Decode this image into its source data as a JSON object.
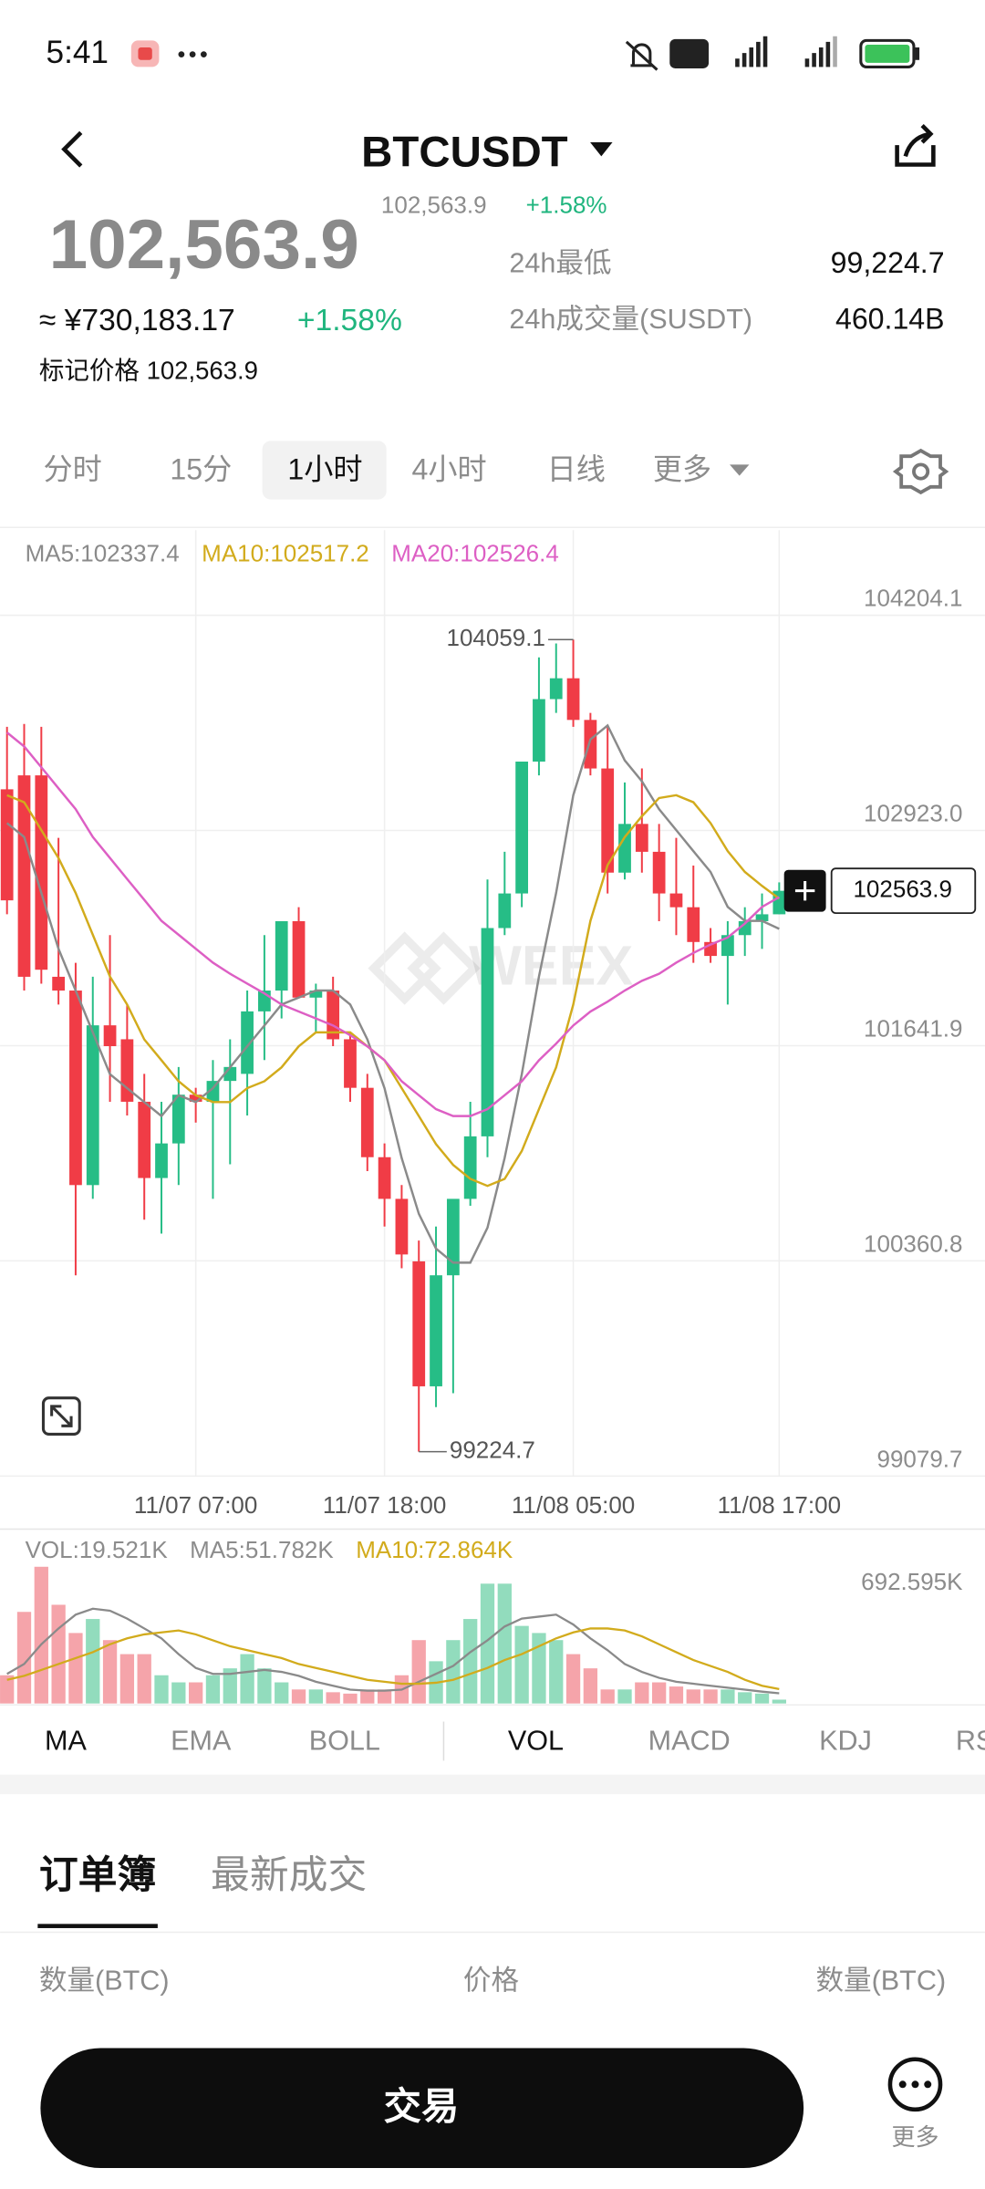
{
  "status_bar": {
    "time": "5:41"
  },
  "header": {
    "symbol": "BTCUSDT",
    "price": "102,563.9",
    "change": "+1.58%"
  },
  "ticker": {
    "last_price": "102,563.9",
    "cny": "≈ ¥730,183.17",
    "change": "+1.58%",
    "mark_price": "标记价格 102,563.9",
    "stats": [
      {
        "label": "24h最低",
        "value": "99,224.7"
      },
      {
        "label": "24h成交量(SUSDT)",
        "value": "460.14B"
      }
    ]
  },
  "periods": [
    "分时",
    "15分",
    "1小时",
    "4小时",
    "日线",
    "更多"
  ],
  "chart_data": [
    {
      "type": "candlestick",
      "watermark": "WEEX",
      "categories": [
        null,
        null,
        null,
        null,
        null,
        null,
        null,
        null,
        null,
        null,
        null,
        "11/07 07:00",
        null,
        null,
        null,
        null,
        null,
        null,
        null,
        null,
        null,
        null,
        "11/07 18:00",
        null,
        null,
        null,
        null,
        null,
        null,
        null,
        null,
        null,
        null,
        "11/08 05:00",
        null,
        null,
        null,
        null,
        null,
        null,
        null,
        null,
        null,
        null,
        null,
        "11/08 17:00"
      ],
      "open": [
        103168,
        103251,
        103251,
        102052,
        101970,
        100812,
        101763,
        101680,
        101308,
        100854,
        101060,
        101350,
        101308,
        101432,
        101474,
        101846,
        101970,
        102383,
        101928,
        101970,
        101680,
        101391,
        100978,
        100730,
        100358,
        99614,
        100275,
        100730,
        101102,
        102342,
        102548,
        103333,
        103705,
        103829,
        103581,
        103292,
        102672,
        102962,
        102796,
        102548,
        102466,
        102259,
        102176,
        102300,
        102383,
        102424
      ],
      "high": [
        103540,
        103557,
        103540,
        102879,
        102135,
        102052,
        102300,
        101887,
        101474,
        101308,
        101515,
        101391,
        101556,
        101680,
        101970,
        102300,
        102383,
        102466,
        102011,
        102052,
        101722,
        101474,
        101060,
        100812,
        100482,
        100565,
        100689,
        101308,
        102631,
        102796,
        103333,
        103953,
        104036,
        104059.1,
        103623,
        103540,
        103209,
        103292,
        102962,
        102879,
        102714,
        102342,
        102383,
        102466,
        102548,
        102614
      ],
      "low": [
        102424,
        101970,
        102011,
        101887,
        100275,
        100730,
        101308,
        101226,
        100606,
        100523,
        100812,
        101184,
        100730,
        100936,
        101226,
        101556,
        101804,
        101928,
        101722,
        101639,
        101308,
        100895,
        100565,
        100317,
        99224.7,
        99490,
        99573,
        100689,
        100978,
        102300,
        102466,
        103251,
        103623,
        103540,
        103251,
        102548,
        102631,
        102672,
        102383,
        102300,
        102135,
        102135,
        101887,
        102176,
        102218,
        102424
      ],
      "close": [
        102507,
        102052,
        102094,
        101970,
        100812,
        101763,
        101639,
        101308,
        100854,
        101060,
        101350,
        101308,
        101432,
        101515,
        101846,
        101970,
        102383,
        101928,
        101970,
        101680,
        101391,
        100978,
        100730,
        100399,
        99614,
        100275,
        100730,
        101102,
        102342,
        102548,
        103333,
        103705,
        103829,
        103581,
        103292,
        102672,
        102962,
        102796,
        102548,
        102466,
        102259,
        102176,
        102300,
        102383,
        102424,
        102563.9
      ],
      "up_color": "#26bd86",
      "down_color": "#f03c46",
      "lines": [
        {
          "name": "MA5:102337.4",
          "color": "#8a8a8a",
          "values": [
            102967,
            102884,
            102551,
            102219,
            101970,
            101721,
            101472,
            101389,
            101306,
            101223,
            101347,
            101306,
            101389,
            101513,
            101638,
            101762,
            101887,
            101928,
            101970,
            101970,
            101887,
            101679,
            101389,
            100973,
            100641,
            100434,
            100350,
            100350,
            100558,
            100973,
            101472,
            102053,
            102551,
            103133,
            103465,
            103548,
            103340,
            103216,
            103050,
            102925,
            102800,
            102676,
            102468,
            102385,
            102385,
            102337.4
          ]
        },
        {
          "name": "MA10:102517.2",
          "color": "#d2ab1c",
          "values": [
            103133,
            103091,
            102925,
            102759,
            102551,
            102302,
            102053,
            101887,
            101679,
            101555,
            101430,
            101347,
            101306,
            101306,
            101389,
            101430,
            101513,
            101638,
            101721,
            101721,
            101721,
            101638,
            101555,
            101389,
            101223,
            101056,
            100932,
            100849,
            100807,
            100849,
            101015,
            101264,
            101513,
            101887,
            102385,
            102717,
            102884,
            103008,
            103116,
            103133,
            103091,
            102967,
            102800,
            102676,
            102593,
            102517.2
          ]
        },
        {
          "name": "MA20:102526.4",
          "color": "#dd5fc4",
          "values": [
            103506,
            103423,
            103299,
            103174,
            103050,
            102884,
            102759,
            102634,
            102510,
            102385,
            102302,
            102219,
            102136,
            102070,
            102011,
            101953,
            101887,
            101845,
            101804,
            101762,
            101704,
            101638,
            101555,
            101430,
            101347,
            101264,
            101223,
            101223,
            101264,
            101347,
            101430,
            101555,
            101654,
            101762,
            101845,
            101904,
            101970,
            102028,
            102070,
            102136,
            102194,
            102244,
            102286,
            102369,
            102468,
            102526.4
          ]
        }
      ],
      "ylim": [
        99079.7,
        104710.7
      ],
      "yticks": [
        104204.1,
        {
          "value": 102923,
          "label": "102923.0"
        },
        101641.9,
        100360.8,
        99079.7
      ],
      "grid": true
    },
    {
      "type": "bar",
      "name": "VOL:19.521K",
      "values": [
        143,
        464,
        692.595,
        500,
        357,
        428,
        321,
        250,
        250,
        143,
        107,
        107,
        143,
        178,
        250,
        178,
        107,
        71,
        71,
        57,
        50,
        71,
        71,
        143,
        321,
        214,
        321,
        428,
        607,
        607,
        393,
        357,
        321,
        250,
        178,
        71,
        71,
        107,
        107,
        86,
        71,
        71,
        71,
        57,
        50,
        19.521
      ],
      "up_color": "#92dcbd",
      "down_color": "#f5a4aa",
      "lines": [
        {
          "name": "MA5:51.782K",
          "color": "#8a8a8a",
          "values": [
            150,
            200,
            300,
            380,
            450,
            480,
            470,
            430,
            380,
            330,
            250,
            180,
            150,
            150,
            160,
            170,
            160,
            140,
            110,
            90,
            70,
            65,
            65,
            70,
            110,
            150,
            190,
            260,
            320,
            390,
            430,
            440,
            450,
            400,
            330,
            270,
            200,
            160,
            130,
            110,
            100,
            90,
            80,
            70,
            60,
            51.782
          ]
        },
        {
          "name": "MA10:72.864K",
          "color": "#d2ab1c",
          "values": [
            120,
            140,
            170,
            200,
            230,
            260,
            300,
            330,
            350,
            360,
            370,
            350,
            320,
            290,
            270,
            250,
            230,
            200,
            180,
            160,
            140,
            120,
            110,
            100,
            100,
            105,
            120,
            150,
            180,
            220,
            250,
            290,
            330,
            360,
            380,
            380,
            370,
            340,
            300,
            260,
            220,
            190,
            160,
            120,
            90,
            72.864
          ]
        }
      ],
      "ylim": [
        0,
        692.595
      ],
      "yticks": [
        {
          "value": 692.595,
          "label": "692.595K"
        }
      ]
    }
  ],
  "indicators": [
    "MA",
    "EMA",
    "BOLL",
    "VOL",
    "MACD",
    "KDJ",
    "RS"
  ],
  "order_book": {
    "tabs": [
      "订单簿",
      "最新成交"
    ],
    "columns": [
      "数量(BTC)",
      "价格",
      "数量(BTC)"
    ]
  },
  "actions": {
    "trade": "交易",
    "more": "更多"
  }
}
